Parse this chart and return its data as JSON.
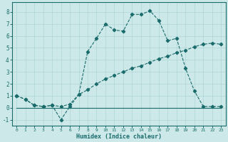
{
  "xlabel": "Humidex (Indice chaleur)",
  "xlim": [
    -0.5,
    23.5
  ],
  "ylim": [
    -1.5,
    8.8
  ],
  "xticks": [
    0,
    1,
    2,
    3,
    4,
    5,
    6,
    7,
    8,
    9,
    10,
    11,
    12,
    13,
    14,
    15,
    16,
    17,
    18,
    19,
    20,
    21,
    22,
    23
  ],
  "yticks": [
    -1,
    0,
    1,
    2,
    3,
    4,
    5,
    6,
    7,
    8
  ],
  "line_color": "#1a6b6b",
  "bg_color": "#cce8e8",
  "grid_color": "#aed4d4",
  "line1_x": [
    0,
    1,
    2,
    3,
    4,
    5,
    6,
    7,
    8,
    9,
    10,
    11,
    12,
    13,
    14,
    15,
    16,
    17,
    18,
    19,
    20,
    21,
    22,
    23
  ],
  "line1_y": [
    1.0,
    0.7,
    0.2,
    0.1,
    0.2,
    -1.0,
    0.1,
    1.1,
    4.7,
    5.8,
    7.0,
    6.5,
    6.4,
    7.8,
    7.8,
    8.1,
    7.3,
    5.6,
    5.8,
    3.3,
    1.4,
    0.1,
    0.1,
    0.1
  ],
  "line2_x": [
    0,
    1,
    2,
    3,
    4,
    5,
    6,
    7,
    8,
    9,
    10,
    11,
    12,
    13,
    14,
    15,
    16,
    17,
    18,
    19,
    20,
    21,
    22,
    23
  ],
  "line2_y": [
    1.0,
    0.7,
    0.2,
    0.1,
    0.2,
    0.1,
    0.3,
    1.1,
    1.5,
    2.0,
    2.4,
    2.7,
    3.0,
    3.3,
    3.5,
    3.8,
    4.1,
    4.3,
    4.6,
    4.8,
    5.1,
    5.3,
    5.4,
    5.3
  ],
  "line3_x": [
    0,
    10,
    23
  ],
  "line3_y": [
    0.0,
    0.0,
    0.0
  ]
}
